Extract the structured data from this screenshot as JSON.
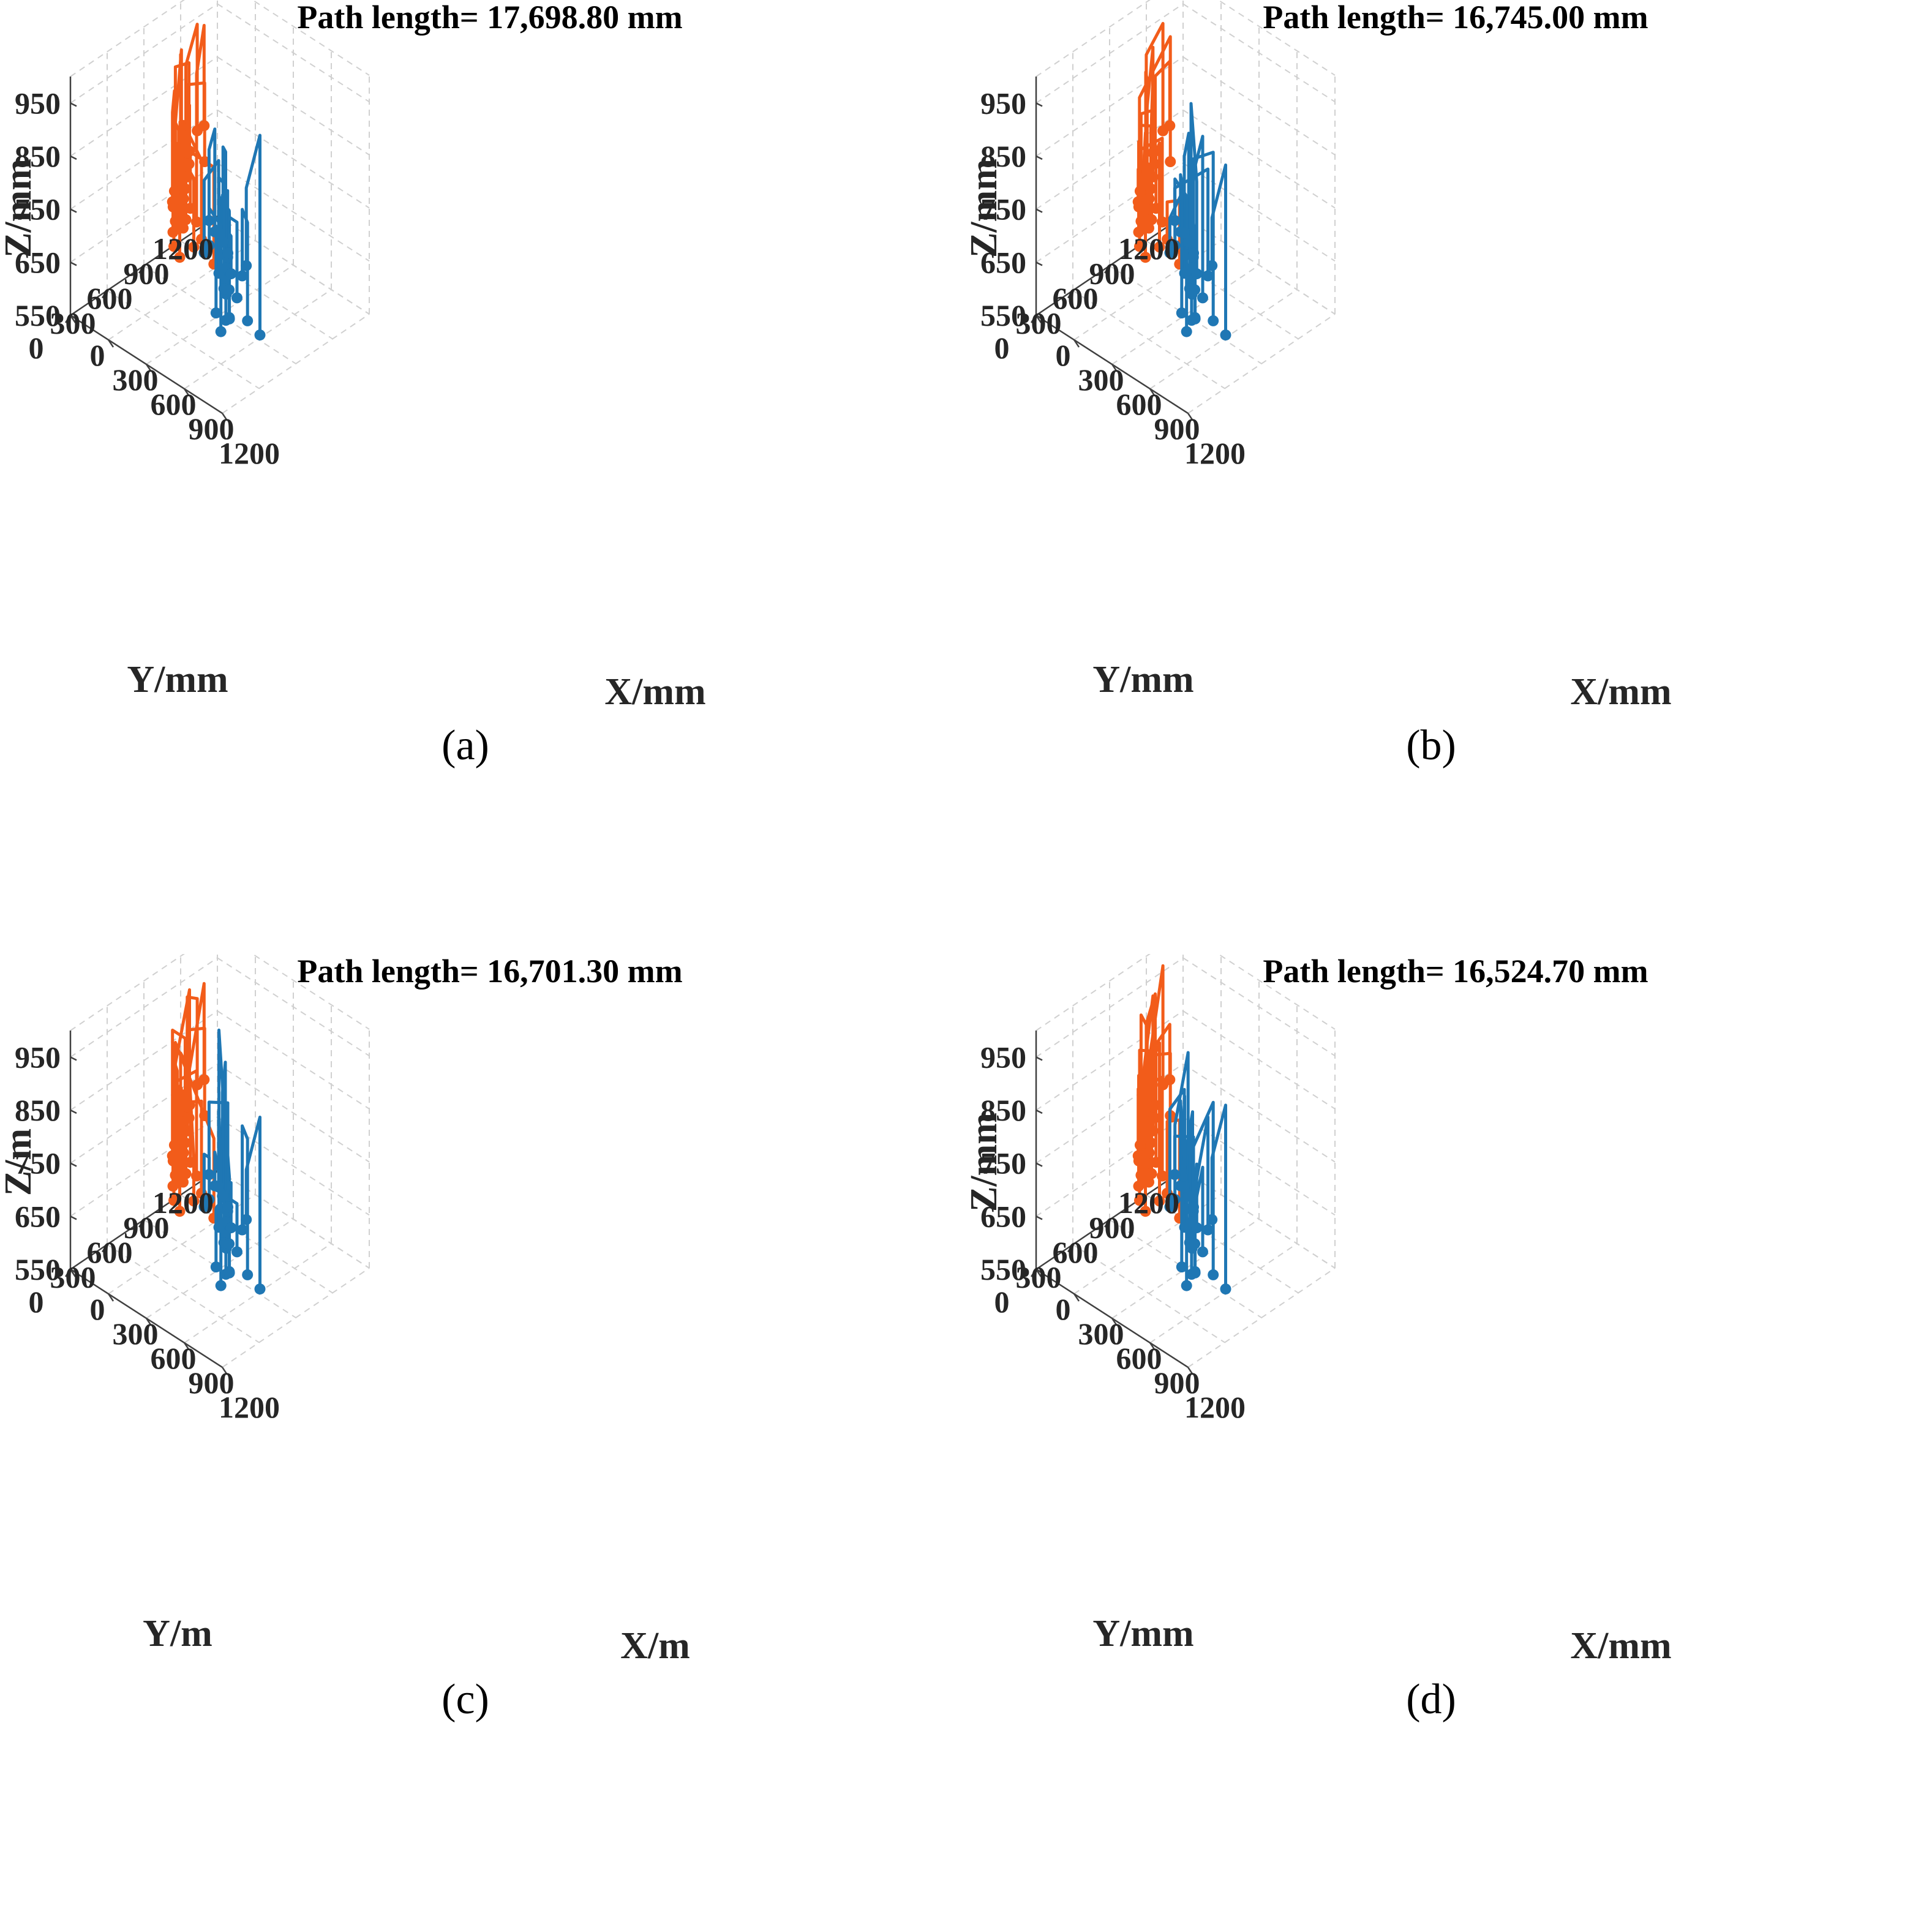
{
  "chart_data": [
    {
      "type": "line3d",
      "panel_label": "(a)",
      "title": "Path length= 17,698.80 mm",
      "xlabel": "X/mm",
      "ylabel": "Y/mm",
      "zlabel": "Z/mm",
      "variant": 0,
      "xlim": [
        0,
        1200
      ],
      "ylim": [
        0,
        1200
      ],
      "zlim": [
        550,
        1000
      ],
      "xticks": [
        "0",
        "300",
        "600",
        "900",
        "1200"
      ],
      "yticks": [
        "0",
        "300",
        "600",
        "900",
        "1200"
      ],
      "zticks": [
        "550",
        "650",
        "750",
        "850",
        "950"
      ],
      "grid": true,
      "series_colors": [
        "#f25c1a",
        "#1f77b4"
      ]
    },
    {
      "type": "line3d",
      "panel_label": "(b)",
      "title": "Path length= 16,745.00 mm",
      "xlabel": "X/mm",
      "ylabel": "Y/mm",
      "zlabel": "Z/mm",
      "variant": 1,
      "xlim": [
        0,
        1200
      ],
      "ylim": [
        0,
        1200
      ],
      "zlim": [
        550,
        1000
      ],
      "xticks": [
        "0",
        "300",
        "600",
        "900",
        "1200"
      ],
      "yticks": [
        "0",
        "300",
        "600",
        "900",
        "1200"
      ],
      "zticks": [
        "550",
        "650",
        "750",
        "850",
        "950"
      ],
      "grid": true,
      "series_colors": [
        "#f25c1a",
        "#1f77b4"
      ]
    },
    {
      "type": "line3d",
      "panel_label": "(c)",
      "title": "Path length= 16,701.30 mm",
      "xlabel": "X/m",
      "ylabel": "Y/m",
      "zlabel": "Z/m",
      "variant": 2,
      "xlim": [
        0,
        1200
      ],
      "ylim": [
        0,
        1200
      ],
      "zlim": [
        550,
        1000
      ],
      "xticks": [
        "0",
        "300",
        "600",
        "900",
        "1200"
      ],
      "yticks": [
        "0",
        "300",
        "600",
        "900",
        "1200"
      ],
      "zticks": [
        "550",
        "650",
        "750",
        "850",
        "950"
      ],
      "grid": true,
      "series_colors": [
        "#f25c1a",
        "#1f77b4"
      ]
    },
    {
      "type": "line3d",
      "panel_label": "(d)",
      "title": "Path length= 16,524.70 mm",
      "xlabel": "X/mm",
      "ylabel": "Y/mm",
      "zlabel": "Z/mm",
      "variant": 3,
      "xlim": [
        0,
        1200
      ],
      "ylim": [
        0,
        1200
      ],
      "zlim": [
        550,
        1000
      ],
      "xticks": [
        "0",
        "300",
        "600",
        "900",
        "1200"
      ],
      "yticks": [
        "0",
        "300",
        "600",
        "900",
        "1200"
      ],
      "zticks": [
        "550",
        "650",
        "750",
        "850",
        "950"
      ],
      "grid": true,
      "series_colors": [
        "#f25c1a",
        "#1f77b4"
      ]
    }
  ]
}
